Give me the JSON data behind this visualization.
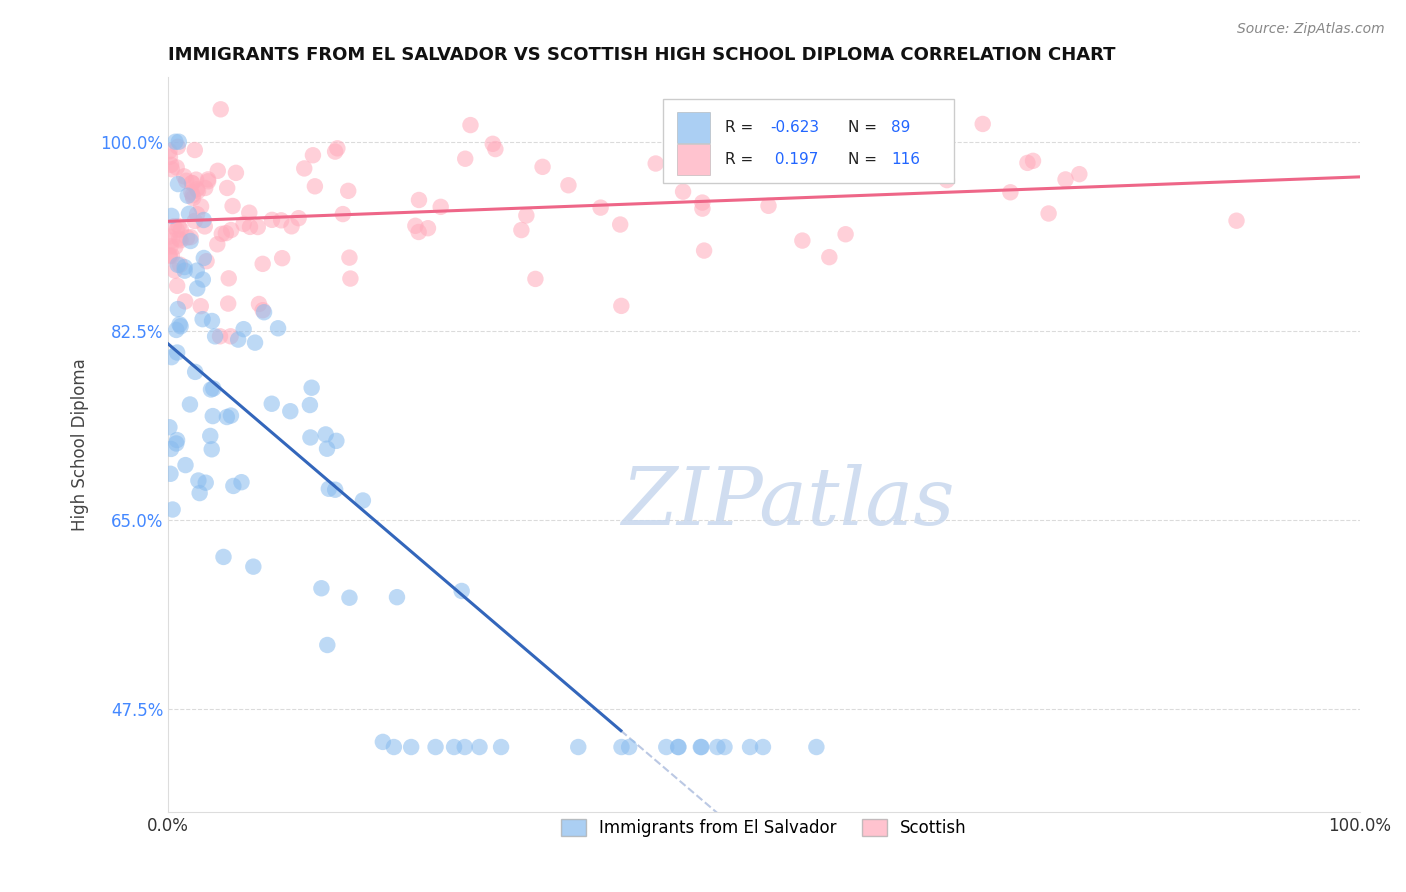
{
  "title": "IMMIGRANTS FROM EL SALVADOR VS SCOTTISH HIGH SCHOOL DIPLOMA CORRELATION CHART",
  "source": "Source: ZipAtlas.com",
  "ylabel": "High School Diploma",
  "xlim": [
    0.0,
    1.0
  ],
  "ylim": [
    0.38,
    1.06
  ],
  "yticks": [
    0.475,
    0.65,
    0.825,
    1.0
  ],
  "ytick_labels": [
    "47.5%",
    "65.0%",
    "82.5%",
    "100.0%"
  ],
  "xticks": [
    0.0,
    1.0
  ],
  "xtick_labels": [
    "0.0%",
    "100.0%"
  ],
  "blue_color": "#88BBEE",
  "pink_color": "#FFAABB",
  "blue_line_color": "#3366BB",
  "pink_line_color": "#EE6688",
  "grid_color": "#CCCCCC",
  "ytick_color": "#4488FF",
  "blue_N": 89,
  "pink_N": 116,
  "blue_seed": 42,
  "pink_seed": 99
}
